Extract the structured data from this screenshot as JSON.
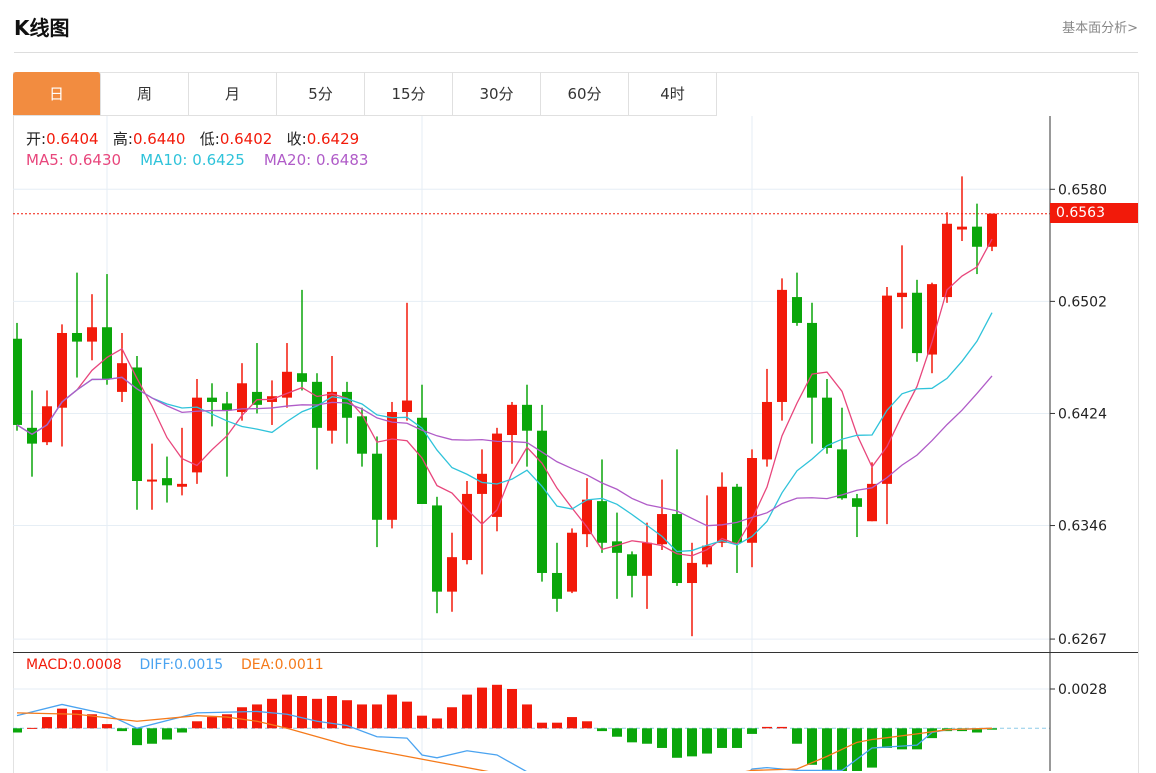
{
  "header": {
    "title": "K线图",
    "link": "基本面分析>"
  },
  "tabs": [
    {
      "label": "日",
      "active": true
    },
    {
      "label": "周"
    },
    {
      "label": "月"
    },
    {
      "label": "5分"
    },
    {
      "label": "15分"
    },
    {
      "label": "30分"
    },
    {
      "label": "60分"
    },
    {
      "label": "4时"
    }
  ],
  "ohlc_info": {
    "open_label": "开:",
    "open": "0.6404",
    "high_label": "高:",
    "high": "0.6440",
    "low_label": "低:",
    "low": "0.6402",
    "close_label": "收:",
    "close": "0.6429"
  },
  "ma_info": {
    "ma5": "MA5: 0.6430",
    "ma10": "MA10: 0.6425",
    "ma20": "MA20: 0.6483"
  },
  "macd_info": {
    "macd": "MACD:0.0008",
    "diff": "DIFF:0.0015",
    "dea": "DEA:0.0011"
  },
  "current_price": "0.6563",
  "colors": {
    "up": "#f21a0a",
    "down": "#0aa60a",
    "ma5": "#e8467c",
    "ma10": "#2fc3da",
    "ma20": "#b05cc8",
    "diff": "#4aa3f0",
    "dea": "#f57a1a",
    "active_tab": "#f28c40"
  },
  "chart_data": [
    {
      "type": "candlestick",
      "title": "K线图 日",
      "yticks": [
        "0.6580",
        "0.6502",
        "0.6424",
        "0.6346",
        "0.6267"
      ],
      "ylim": [
        0.6258,
        0.6631
      ],
      "current_price": 0.6563,
      "ohlc": [
        [
          0.6476,
          0.6487,
          0.6412,
          0.6416
        ],
        [
          0.6414,
          0.644,
          0.638,
          0.6403
        ],
        [
          0.6404,
          0.644,
          0.6402,
          0.6429
        ],
        [
          0.6428,
          0.6486,
          0.6401,
          0.648
        ],
        [
          0.648,
          0.6522,
          0.6449,
          0.6474
        ],
        [
          0.6474,
          0.6507,
          0.6461,
          0.6484
        ],
        [
          0.6484,
          0.6521,
          0.6444,
          0.6448
        ],
        [
          0.6439,
          0.648,
          0.6432,
          0.6459
        ],
        [
          0.6456,
          0.6464,
          0.6357,
          0.6377
        ],
        [
          0.6377,
          0.6403,
          0.6357,
          0.6378
        ],
        [
          0.6379,
          0.6394,
          0.6362,
          0.6374
        ],
        [
          0.6373,
          0.6414,
          0.6367,
          0.6375
        ],
        [
          0.6383,
          0.6448,
          0.6375,
          0.6435
        ],
        [
          0.6435,
          0.6445,
          0.6415,
          0.6432
        ],
        [
          0.6431,
          0.6439,
          0.638,
          0.6426
        ],
        [
          0.6425,
          0.6459,
          0.6419,
          0.6445
        ],
        [
          0.6439,
          0.6473,
          0.6424,
          0.643
        ],
        [
          0.6432,
          0.6447,
          0.6416,
          0.6436
        ],
        [
          0.6435,
          0.6473,
          0.6428,
          0.6453
        ],
        [
          0.6452,
          0.651,
          0.644,
          0.6446
        ],
        [
          0.6446,
          0.6452,
          0.6385,
          0.6414
        ],
        [
          0.6412,
          0.6464,
          0.6403,
          0.6439
        ],
        [
          0.6439,
          0.6446,
          0.6403,
          0.6421
        ],
        [
          0.6422,
          0.6428,
          0.6387,
          0.6396
        ],
        [
          0.6396,
          0.6408,
          0.6331,
          0.635
        ],
        [
          0.635,
          0.6432,
          0.6344,
          0.6425
        ],
        [
          0.6425,
          0.6501,
          0.6419,
          0.6433
        ],
        [
          0.6421,
          0.6444,
          0.6361,
          0.6361
        ],
        [
          0.636,
          0.6366,
          0.6285,
          0.63
        ],
        [
          0.63,
          0.6341,
          0.6286,
          0.6324
        ],
        [
          0.6322,
          0.6377,
          0.6319,
          0.6368
        ],
        [
          0.6368,
          0.6399,
          0.6312,
          0.6382
        ],
        [
          0.6352,
          0.6414,
          0.6342,
          0.641
        ],
        [
          0.6409,
          0.6432,
          0.6389,
          0.643
        ],
        [
          0.643,
          0.6444,
          0.6387,
          0.6412
        ],
        [
          0.6412,
          0.643,
          0.6307,
          0.6313
        ],
        [
          0.6313,
          0.6334,
          0.6286,
          0.6295
        ],
        [
          0.63,
          0.6344,
          0.6299,
          0.6341
        ],
        [
          0.634,
          0.6379,
          0.6331,
          0.6364
        ],
        [
          0.6363,
          0.6392,
          0.6327,
          0.6334
        ],
        [
          0.6335,
          0.6355,
          0.6295,
          0.6327
        ],
        [
          0.6326,
          0.6328,
          0.6296,
          0.6311
        ],
        [
          0.6311,
          0.6348,
          0.6288,
          0.6334
        ],
        [
          0.6333,
          0.6378,
          0.6329,
          0.6354
        ],
        [
          0.6354,
          0.6399,
          0.6304,
          0.6306
        ],
        [
          0.6306,
          0.6334,
          0.6269,
          0.632
        ],
        [
          0.6319,
          0.6367,
          0.6317,
          0.6332
        ],
        [
          0.6334,
          0.6383,
          0.6331,
          0.6373
        ],
        [
          0.6373,
          0.6375,
          0.6313,
          0.6334
        ],
        [
          0.6334,
          0.6399,
          0.6317,
          0.6393
        ],
        [
          0.6392,
          0.6455,
          0.6387,
          0.6432
        ],
        [
          0.6432,
          0.6518,
          0.6419,
          0.651
        ],
        [
          0.6505,
          0.6522,
          0.6485,
          0.6487
        ],
        [
          0.6487,
          0.6501,
          0.6403,
          0.6435
        ],
        [
          0.6435,
          0.6448,
          0.6396,
          0.64
        ],
        [
          0.6399,
          0.6428,
          0.6364,
          0.6365
        ],
        [
          0.6365,
          0.6368,
          0.6338,
          0.6359
        ],
        [
          0.6349,
          0.639,
          0.6349,
          0.6375
        ],
        [
          0.6375,
          0.6512,
          0.6347,
          0.6506
        ],
        [
          0.6505,
          0.6541,
          0.6483,
          0.6508
        ],
        [
          0.6508,
          0.6517,
          0.646,
          0.6466
        ],
        [
          0.6465,
          0.6515,
          0.6452,
          0.6514
        ],
        [
          0.6505,
          0.6564,
          0.6501,
          0.6556
        ],
        [
          0.6552,
          0.6589,
          0.6544,
          0.6554
        ],
        [
          0.6554,
          0.657,
          0.6521,
          0.654
        ],
        [
          0.654,
          0.6563,
          0.6537,
          0.6563
        ]
      ],
      "ma_periods": [
        5,
        10,
        20
      ]
    },
    {
      "type": "bar+line",
      "title": "MACD",
      "yticks": [
        "0.0028"
      ],
      "macd": [
        -0.0003,
        3e-05,
        0.0008,
        0.0014,
        0.0013,
        0.001,
        0.0003,
        -0.0002,
        -0.0012,
        -0.0011,
        -0.0008,
        -0.0003,
        0.0005,
        0.0008,
        0.001,
        0.0015,
        0.0017,
        0.0021,
        0.0024,
        0.0023,
        0.0021,
        0.0023,
        0.002,
        0.0017,
        0.0017,
        0.0024,
        0.0019,
        0.0009,
        0.0007,
        0.0015,
        0.0024,
        0.0029,
        0.0031,
        0.0028,
        0.0017,
        0.0004,
        0.0004,
        0.0008,
        0.0005,
        -0.0002,
        -0.0006,
        -0.001,
        -0.0011,
        -0.0014,
        -0.0021,
        -0.002,
        -0.0018,
        -0.0014,
        -0.0014,
        -0.0004,
        0.0001,
        0.0001,
        -0.0011,
        -0.0026,
        -0.0034,
        -0.0035,
        -0.0033,
        -0.0028,
        -0.0014,
        -0.0015,
        -0.0015,
        -0.0007,
        -0.0002,
        -0.0002,
        -0.0003,
        -0.0001
      ],
      "diff": [
        [
          0,
          0.0009
        ],
        [
          3,
          0.0017
        ],
        [
          6,
          0.001
        ],
        [
          8,
          0.0
        ],
        [
          12,
          0.0011
        ],
        [
          16,
          0.0012
        ],
        [
          18,
          0.001
        ],
        [
          20,
          0.0005
        ],
        [
          22,
          0.0002
        ],
        [
          24,
          -0.0006
        ],
        [
          26,
          -0.0007
        ],
        [
          27,
          -0.0019
        ],
        [
          28,
          -0.0021
        ],
        [
          30,
          -0.0016
        ],
        [
          32,
          -0.0019
        ],
        [
          34,
          -0.0031
        ],
        [
          36,
          -0.0045
        ],
        [
          48,
          -0.004
        ],
        [
          49,
          -0.0029
        ],
        [
          50,
          -0.0028
        ],
        [
          52,
          -0.003
        ],
        [
          55,
          -0.003
        ],
        [
          57,
          -0.0014
        ],
        [
          60,
          -0.0012
        ],
        [
          61,
          -0.0003
        ],
        [
          62,
          -0.0001
        ],
        [
          65,
          0.0
        ]
      ],
      "dea": [
        [
          0,
          0.0011
        ],
        [
          4,
          0.001
        ],
        [
          8,
          0.0005
        ],
        [
          12,
          0.0009
        ],
        [
          14,
          0.0008
        ],
        [
          16,
          0.0005
        ],
        [
          18,
          0.0
        ],
        [
          22,
          -0.0012
        ],
        [
          26,
          -0.002
        ],
        [
          28,
          -0.0024
        ],
        [
          31,
          -0.003
        ],
        [
          34,
          -0.0036
        ],
        [
          40,
          -0.0045
        ],
        [
          48,
          -0.0032
        ],
        [
          49,
          -0.003
        ],
        [
          52,
          -0.0029
        ],
        [
          54,
          -0.002
        ],
        [
          56,
          -0.001
        ],
        [
          57,
          -0.0008
        ],
        [
          60,
          -0.0004
        ],
        [
          62,
          -0.0001
        ],
        [
          65,
          0.0
        ]
      ]
    }
  ]
}
